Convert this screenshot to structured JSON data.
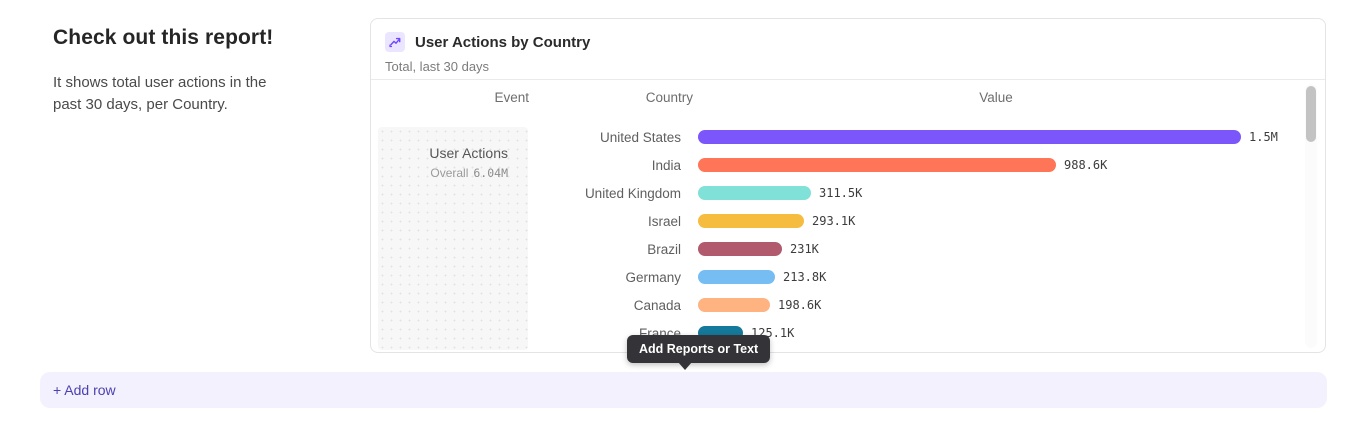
{
  "page": {
    "heading": "Check out this report!",
    "description": "It shows total user actions in the past 30 days, per Country.",
    "tooltip_label": "Add Reports or Text",
    "add_row_label": "+ Add row"
  },
  "report_card": {
    "title": "User Actions by Country",
    "subtitle": "Total, last 30 days",
    "icon": "insights-chart-icon",
    "columns": [
      "Event",
      "Country",
      "Value"
    ],
    "event_cell": {
      "name": "User Actions",
      "overall_label": "Overall",
      "overall_value": "6.04M"
    }
  },
  "chart_data": {
    "type": "bar",
    "orientation": "horizontal",
    "title": "User Actions by Country",
    "subtitle": "Total, last 30 days",
    "event": "User Actions",
    "overall_total": "6.04M",
    "categories": [
      "United States",
      "India",
      "United Kingdom",
      "Israel",
      "Brazil",
      "Germany",
      "Canada",
      "France"
    ],
    "values": [
      1500000,
      988600,
      311500,
      293100,
      231000,
      213800,
      198600,
      125100
    ],
    "value_labels": [
      "1.5M",
      "988.6K",
      "311.5K",
      "293.1K",
      "231K",
      "213.8K",
      "198.6K",
      "125.1K"
    ],
    "bar_colors": [
      "#7A56FB",
      "#FF7557",
      "#80E1D9",
      "#F6BC3F",
      "#B25A6D",
      "#75BDF2",
      "#FFB380",
      "#14799B"
    ],
    "xlim": [
      0,
      1500000
    ],
    "legend": false,
    "grid": false
  }
}
